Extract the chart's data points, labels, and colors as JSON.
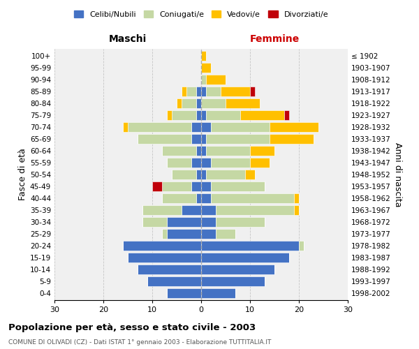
{
  "age_groups": [
    "0-4",
    "5-9",
    "10-14",
    "15-19",
    "20-24",
    "25-29",
    "30-34",
    "35-39",
    "40-44",
    "45-49",
    "50-54",
    "55-59",
    "60-64",
    "65-69",
    "70-74",
    "75-79",
    "80-84",
    "85-89",
    "90-94",
    "95-99",
    "100+"
  ],
  "birth_years": [
    "1998-2002",
    "1993-1997",
    "1988-1992",
    "1983-1987",
    "1978-1982",
    "1973-1977",
    "1968-1972",
    "1963-1967",
    "1958-1962",
    "1953-1957",
    "1948-1952",
    "1943-1947",
    "1938-1942",
    "1933-1937",
    "1928-1932",
    "1923-1927",
    "1918-1922",
    "1913-1917",
    "1908-1912",
    "1903-1907",
    "≤ 1902"
  ],
  "colors": {
    "celibi": "#4472c4",
    "coniugati": "#c5d8a4",
    "vedovi": "#ffc000",
    "divorziati": "#c0000a"
  },
  "maschi": {
    "celibi": [
      7,
      11,
      13,
      15,
      16,
      7,
      7,
      4,
      1,
      2,
      1,
      2,
      1,
      2,
      2,
      1,
      1,
      1,
      0,
      0,
      0
    ],
    "coniugati": [
      0,
      0,
      0,
      0,
      0,
      1,
      5,
      8,
      7,
      6,
      5,
      5,
      7,
      11,
      13,
      5,
      3,
      2,
      0,
      0,
      0
    ],
    "vedovi": [
      0,
      0,
      0,
      0,
      0,
      0,
      0,
      0,
      0,
      0,
      0,
      0,
      0,
      0,
      1,
      1,
      1,
      1,
      0,
      0,
      0
    ],
    "divorziati": [
      0,
      0,
      0,
      0,
      0,
      0,
      0,
      0,
      0,
      2,
      0,
      0,
      0,
      0,
      0,
      0,
      0,
      0,
      0,
      0,
      0
    ]
  },
  "femmine": {
    "celibi": [
      7,
      13,
      15,
      18,
      20,
      3,
      3,
      3,
      2,
      2,
      1,
      2,
      1,
      1,
      2,
      1,
      0,
      1,
      0,
      0,
      0
    ],
    "coniugati": [
      0,
      0,
      0,
      0,
      1,
      4,
      10,
      16,
      17,
      11,
      8,
      8,
      9,
      13,
      12,
      7,
      5,
      3,
      1,
      0,
      0
    ],
    "vedovi": [
      0,
      0,
      0,
      0,
      0,
      0,
      0,
      1,
      1,
      0,
      2,
      4,
      5,
      9,
      10,
      9,
      7,
      6,
      4,
      2,
      1
    ],
    "divorziati": [
      0,
      0,
      0,
      0,
      0,
      0,
      0,
      0,
      0,
      0,
      0,
      0,
      0,
      0,
      0,
      1,
      0,
      1,
      0,
      0,
      0
    ]
  },
  "xlim": 30,
  "title": "Popolazione per età, sesso e stato civile - 2003",
  "subtitle": "COMUNE DI OLIVADI (CZ) - Dati ISTAT 1° gennaio 2003 - Elaborazione TUTTITALIA.IT",
  "ylabel_left": "Fasce di età",
  "ylabel_right": "Anni di nascita",
  "label_maschi": "Maschi",
  "label_femmine": "Femmine",
  "bg_color": "#ffffff",
  "plot_bg": "#f0f0f0",
  "grid_color": "#bbbbbb"
}
